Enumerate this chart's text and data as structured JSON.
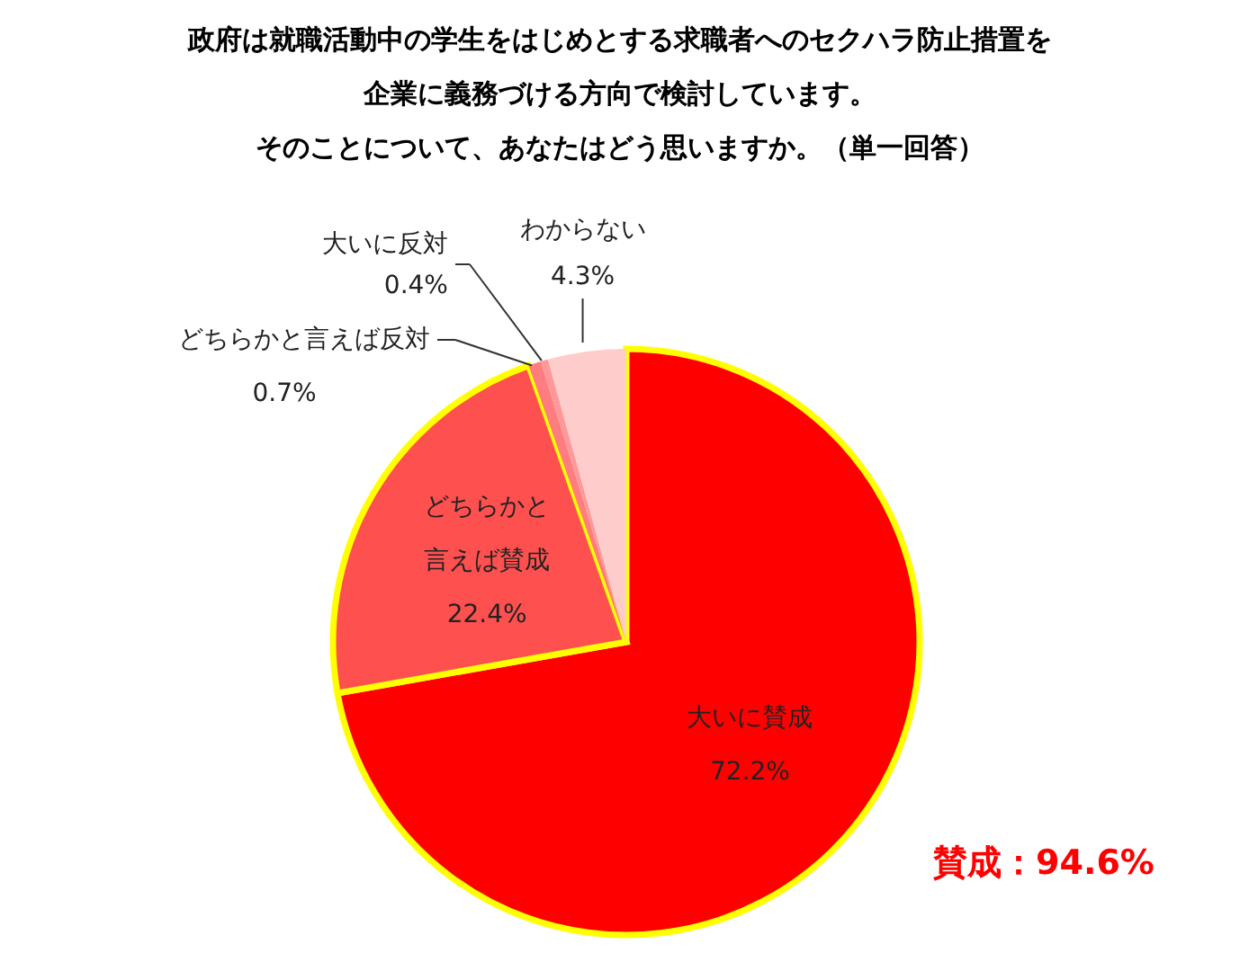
{
  "chart_data": {
    "type": "pie",
    "title": "政府は就職活動中の学生をはじめとする求職者へのセクハラ防止措置を企業に義務づける方向で検討しています。",
    "subtitle": "そのことについて、あなたはどう思いますか。（単一回答）",
    "categories": [
      "大いに賛成",
      "どちらかと言えば賛成",
      "どちらかと言えば反対",
      "大いに反対",
      "わからない"
    ],
    "values": [
      72.2,
      22.4,
      0.7,
      0.4,
      4.3
    ],
    "value_labels": [
      "72.2%",
      "22.4%",
      "0.7%",
      "0.4%",
      "4.3%"
    ],
    "colors": [
      "#ff0000",
      "#ff5050",
      "#ff7c80",
      "#ff9999",
      "#ffcccc"
    ],
    "annotations": [
      "賛成：94.6%"
    ]
  }
}
